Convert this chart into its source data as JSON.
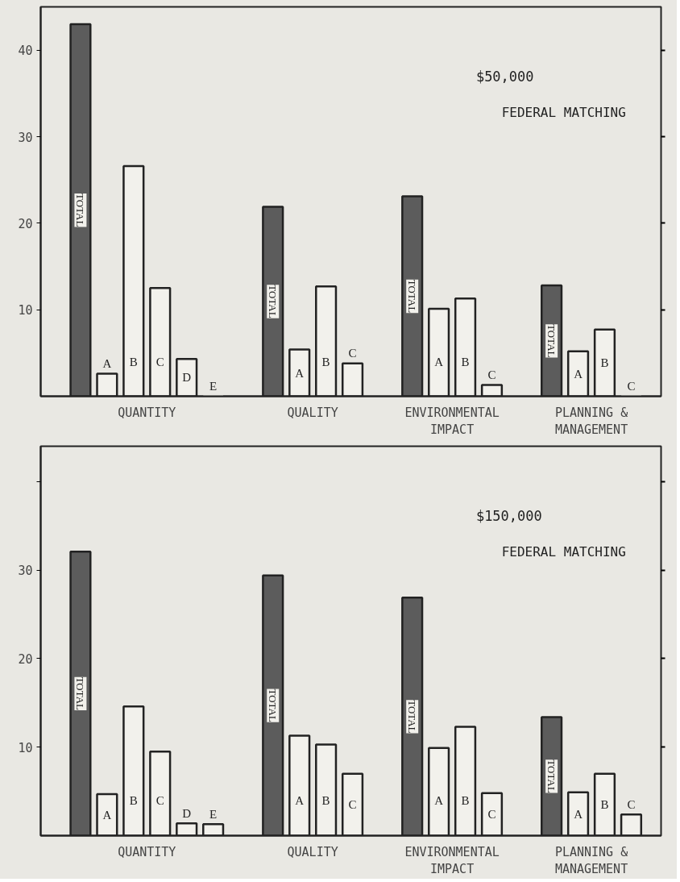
{
  "chart_data": [
    {
      "type": "bar",
      "title": "$50,000",
      "subtitle": "FEDERAL MATCHING",
      "categories": [
        "QUANTITY",
        "QUALITY",
        "ENVIRONMENTAL\nIMPACT",
        "PLANNING &\nMANAGEMENT"
      ],
      "ylim": [
        0,
        45
      ],
      "yticks": [
        10,
        20,
        30,
        40
      ],
      "grid": false,
      "series": [
        {
          "name": "TOTAL",
          "color": "#5c5c5c",
          "values": [
            43.0,
            21.9,
            23.1,
            12.8
          ]
        },
        {
          "name": "A",
          "color": "#f2f1ec",
          "values": [
            2.6,
            5.4,
            10.1,
            5.2
          ]
        },
        {
          "name": "B",
          "color": "#f2f1ec",
          "values": [
            26.6,
            12.7,
            11.3,
            7.7
          ]
        },
        {
          "name": "C",
          "color": "#f2f1ec",
          "values": [
            12.5,
            3.8,
            1.3,
            0
          ]
        },
        {
          "name": "D",
          "color": "#f2f1ec",
          "values": [
            4.3,
            null,
            null,
            null
          ]
        },
        {
          "name": "E",
          "color": "#f2f1ec",
          "values": [
            0,
            null,
            null,
            null
          ]
        }
      ]
    },
    {
      "type": "bar",
      "title": "$150,000",
      "subtitle": "FEDERAL MATCHING",
      "categories": [
        "QUANTITY",
        "QUALITY",
        "ENVIRONMENTAL\nIMPACT",
        "PLANNING &\nMANAGEMENT"
      ],
      "ylim": [
        0,
        44
      ],
      "yticks": [
        10,
        20,
        30,
        {
          "value": 40,
          "label": null
        }
      ],
      "grid": false,
      "series": [
        {
          "name": "TOTAL",
          "color": "#5c5c5c",
          "values": [
            32.1,
            29.4,
            26.9,
            13.4
          ]
        },
        {
          "name": "A",
          "color": "#f2f1ec",
          "values": [
            4.7,
            11.3,
            9.9,
            4.9
          ]
        },
        {
          "name": "B",
          "color": "#f2f1ec",
          "values": [
            14.6,
            10.3,
            12.3,
            7.0
          ]
        },
        {
          "name": "C",
          "color": "#f2f1ec",
          "values": [
            9.5,
            7.0,
            4.8,
            2.4
          ]
        },
        {
          "name": "D",
          "color": "#f2f1ec",
          "values": [
            1.4,
            null,
            null,
            null
          ]
        },
        {
          "name": "E",
          "color": "#f2f1ec",
          "values": [
            1.3,
            null,
            null,
            null
          ]
        }
      ]
    }
  ]
}
